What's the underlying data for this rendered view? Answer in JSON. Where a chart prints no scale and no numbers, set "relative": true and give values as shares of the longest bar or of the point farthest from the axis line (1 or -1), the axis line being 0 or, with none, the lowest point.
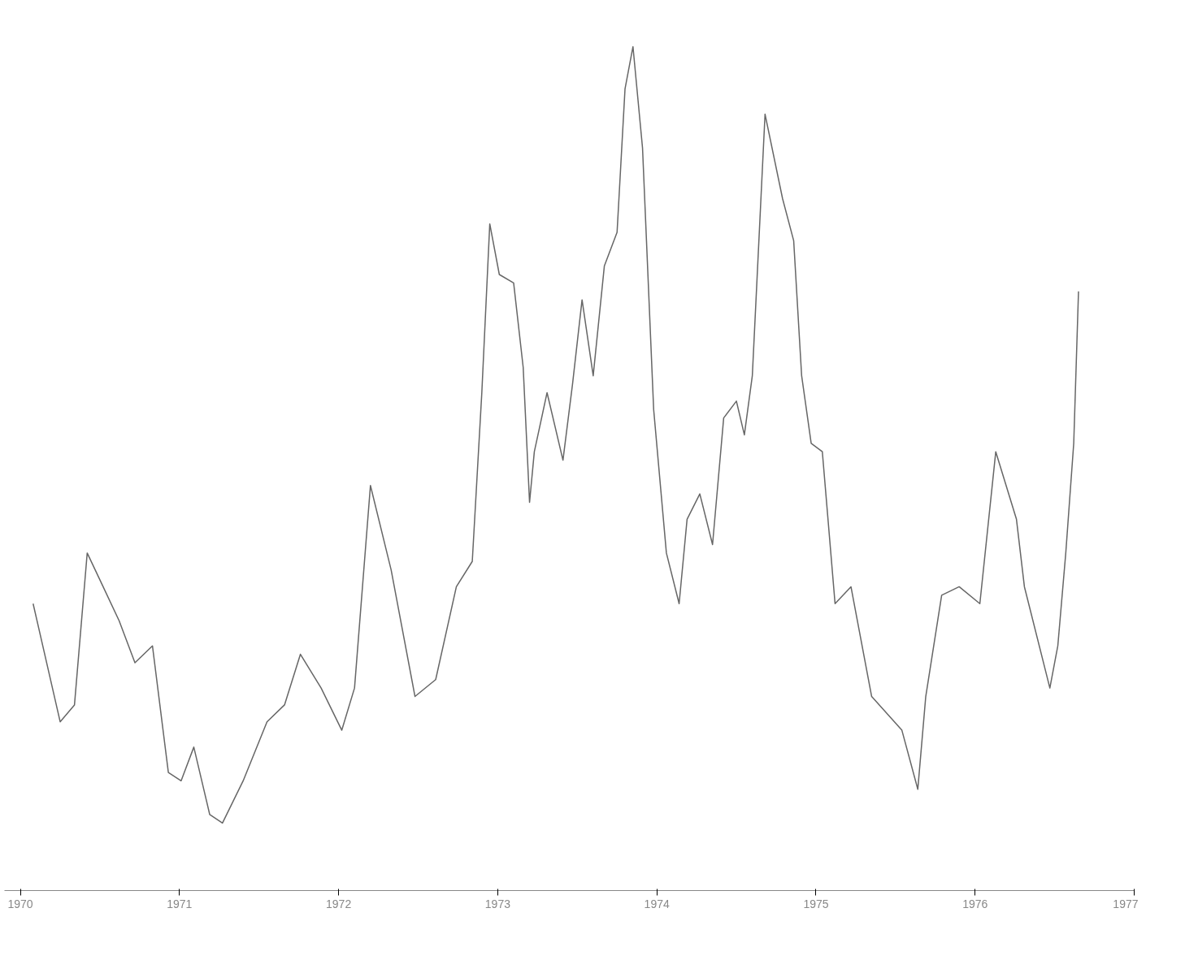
{
  "chart_data": {
    "type": "line",
    "relative": true,
    "xlim": [
      1969.9,
      1977
    ],
    "xticks": [
      1970,
      1971,
      1972,
      1973,
      1974,
      1975,
      1976,
      1977
    ],
    "grid": false,
    "marker": "none",
    "line_style": "solid",
    "series": [
      {
        "color": "#666666",
        "x": [
          1970.08,
          1970.25,
          1970.34,
          1970.42,
          1970.52,
          1970.62,
          1970.72,
          1970.83,
          1970.93,
          1971.01,
          1971.09,
          1971.19,
          1971.27,
          1971.4,
          1971.55,
          1971.66,
          1971.76,
          1971.89,
          1972.02,
          1972.1,
          1972.2,
          1972.33,
          1972.48,
          1972.61,
          1972.74,
          1972.84,
          1972.9,
          1972.95,
          1973.01,
          1973.1,
          1973.16,
          1973.2,
          1973.23,
          1973.31,
          1973.41,
          1973.47,
          1973.53,
          1973.6,
          1973.67,
          1973.75,
          1973.8,
          1973.85,
          1973.91,
          1973.98,
          1974.06,
          1974.14,
          1974.19,
          1974.27,
          1974.35,
          1974.42,
          1974.5,
          1974.55,
          1974.6,
          1974.68,
          1974.79,
          1974.86,
          1974.91,
          1974.97,
          1975.04,
          1975.12,
          1975.22,
          1975.35,
          1975.54,
          1975.64,
          1975.69,
          1975.79,
          1975.9,
          1976.03,
          1976.13,
          1976.26,
          1976.31,
          1976.47,
          1976.52,
          1976.57,
          1976.62,
          1976.65
        ],
        "values": [
          0.34,
          0.2,
          0.22,
          0.4,
          0.36,
          0.32,
          0.27,
          0.29,
          0.14,
          0.13,
          0.17,
          0.09,
          0.08,
          0.13,
          0.2,
          0.22,
          0.28,
          0.24,
          0.19,
          0.24,
          0.48,
          0.38,
          0.23,
          0.25,
          0.36,
          0.39,
          0.59,
          0.79,
          0.73,
          0.72,
          0.62,
          0.46,
          0.52,
          0.59,
          0.51,
          0.6,
          0.7,
          0.61,
          0.74,
          0.78,
          0.95,
          1,
          0.88,
          0.57,
          0.4,
          0.34,
          0.44,
          0.47,
          0.41,
          0.56,
          0.58,
          0.54,
          0.61,
          0.92,
          0.82,
          0.77,
          0.61,
          0.53,
          0.52,
          0.34,
          0.36,
          0.23,
          0.19,
          0.12,
          0.23,
          0.35,
          0.36,
          0.34,
          0.52,
          0.44,
          0.36,
          0.24,
          0.29,
          0.4,
          0.53,
          0.71
        ]
      }
    ]
  }
}
